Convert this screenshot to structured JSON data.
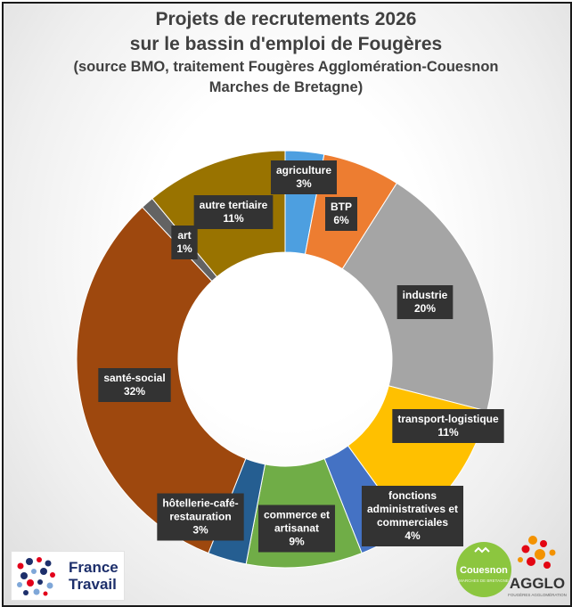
{
  "chart_data": {
    "type": "pie",
    "title": "Projets de recrutements 2026 sur le bassin d'emploi de Fougères",
    "subtitle": "(source BMO, traitement Fougères Agglomération-Couesnon Marches de Bretagne)",
    "title_lines": [
      "Projets de recrutements 2026",
      "sur le bassin d'emploi de Fougères"
    ],
    "subtitle_lines": [
      "(source BMO, traitement Fougères Agglomération-Couesnon",
      "Marches de Bretagne)"
    ],
    "donut": true,
    "categories": [
      "agriculture",
      "BTP",
      "industrie",
      "transport-logistique",
      "fonctions administratives et commerciales",
      "commerce et artisanat",
      "hôtellerie-café-restauration",
      "santé-social",
      "art",
      "autre tertiaire"
    ],
    "values": [
      3,
      6,
      20,
      11,
      4,
      9,
      3,
      32,
      1,
      11
    ],
    "colors": [
      "#4d9fe0",
      "#ed7d31",
      "#a5a5a5",
      "#ffc000",
      "#4472c4",
      "#70ad47",
      "#255e91",
      "#9e480e",
      "#636363",
      "#997300"
    ],
    "labels": [
      {
        "lines": [
          "agriculture",
          "3%"
        ]
      },
      {
        "lines": [
          "BTP",
          "6%"
        ]
      },
      {
        "lines": [
          "industrie",
          "20%"
        ]
      },
      {
        "lines": [
          "transport-logistique",
          "11%"
        ]
      },
      {
        "lines": [
          "fonctions",
          "administratives et",
          "commerciales",
          "4%"
        ]
      },
      {
        "lines": [
          "commerce et",
          "artisanat",
          "9%"
        ]
      },
      {
        "lines": [
          "hôtellerie-café-",
          "restauration",
          "3%"
        ]
      },
      {
        "lines": [
          "santé-social",
          "32%"
        ]
      },
      {
        "lines": [
          "art",
          "1%"
        ]
      },
      {
        "lines": [
          "autre tertiaire",
          "11%"
        ]
      }
    ]
  },
  "logos": {
    "france_travail": {
      "line1": "France",
      "line2": "Travail"
    },
    "couesnon": {
      "name": "Couesnon",
      "tagline": "MARCHES DE BRETAGNE"
    },
    "agglo": {
      "name": "AGGLO",
      "tagline": "FOUGÈRES AGGLOMÉRATION"
    }
  }
}
